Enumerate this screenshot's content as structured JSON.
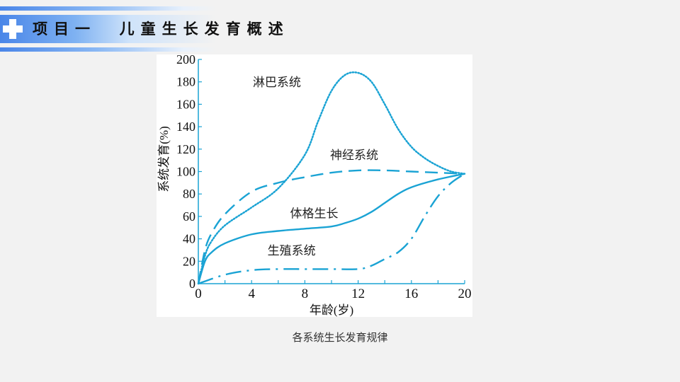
{
  "header": {
    "title": "项目一  儿童生长发育概述",
    "icon": "plus-cross-icon",
    "accent_color": "#4a86e8"
  },
  "caption": "各系统生长发育规律",
  "chart_data": {
    "type": "line",
    "title": "各系统生长发育规律",
    "xlabel": "年龄(岁)",
    "ylabel": "系统发育(%)",
    "xlim": [
      0,
      20
    ],
    "ylim": [
      0,
      200
    ],
    "x_ticks": [
      0,
      4,
      8,
      12,
      16,
      20
    ],
    "y_ticks": [
      0,
      20,
      40,
      60,
      80,
      100,
      120,
      140,
      160,
      180,
      200
    ],
    "grid": false,
    "line_color": "#1aa3d4",
    "series": [
      {
        "name": "淋巴系统",
        "style": "dotted",
        "x": [
          0,
          0.5,
          1,
          2,
          4,
          6,
          8,
          9,
          10,
          11,
          12,
          13,
          14,
          15,
          16,
          17,
          18,
          19,
          20
        ],
        "values": [
          0,
          25,
          38,
          52,
          68,
          85,
          115,
          145,
          172,
          186,
          188,
          180,
          160,
          138,
          122,
          112,
          105,
          100,
          98
        ]
      },
      {
        "name": "神经系统",
        "style": "dashed",
        "x": [
          0,
          0.5,
          1,
          2,
          4,
          6,
          8,
          10,
          12,
          14,
          16,
          18,
          20
        ],
        "values": [
          0,
          30,
          45,
          62,
          82,
          90,
          95,
          99,
          101,
          101,
          100,
          99,
          98
        ]
      },
      {
        "name": "体格生长",
        "style": "solid",
        "x": [
          0,
          0.5,
          1,
          2,
          4,
          6,
          8,
          10,
          11,
          12,
          13,
          14,
          15,
          16,
          18,
          20
        ],
        "values": [
          0,
          20,
          28,
          36,
          44,
          47,
          49,
          51,
          54,
          58,
          64,
          72,
          80,
          86,
          93,
          98
        ]
      },
      {
        "name": "生殖系统",
        "style": "dash-dot",
        "x": [
          0,
          2,
          4,
          6,
          8,
          10,
          12,
          13,
          14,
          15,
          16,
          17,
          18,
          19,
          20
        ],
        "values": [
          0,
          8,
          12,
          13,
          13,
          13,
          13,
          16,
          22,
          28,
          40,
          60,
          78,
          90,
          98
        ]
      }
    ],
    "annotations": [
      {
        "text": "淋巴系统",
        "x": 5.9,
        "y": 176
      },
      {
        "text": "神经系统",
        "x": 11.7,
        "y": 111
      },
      {
        "text": "体格生长",
        "x": 8.7,
        "y": 59
      },
      {
        "text": "生殖系统",
        "x": 7,
        "y": 26
      }
    ]
  }
}
